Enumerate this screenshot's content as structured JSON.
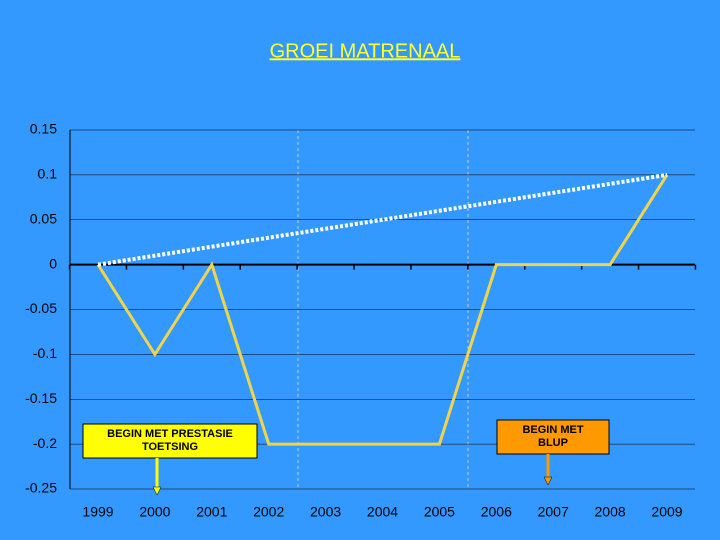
{
  "chart_data": {
    "type": "line",
    "title": "GROEI MATRENAAL",
    "categories": [
      "1999",
      "2000",
      "2001",
      "2002",
      "2003",
      "2004",
      "2005",
      "2006",
      "2007",
      "2008",
      "2009"
    ],
    "series": [
      {
        "color": "#f2d44a",
        "values": [
          0,
          -0.1,
          0,
          -0.2,
          -0.2,
          -0.2,
          -0.2,
          0,
          0,
          0,
          0.1
        ]
      },
      {
        "color": "#ffffff",
        "style": "dotted",
        "values": [
          0,
          0.01,
          0.02,
          0.03,
          0.04,
          0.05,
          0.06,
          0.07,
          0.08,
          0.09,
          0.1
        ]
      }
    ],
    "ylim": [
      -0.25,
      0.15
    ],
    "yticks": [
      -0.25,
      -0.2,
      -0.15,
      -0.1,
      -0.05,
      0,
      0.05,
      0.1,
      0.15
    ],
    "annotations": [
      {
        "lines": [
          "BEGIN MET PRESTASIE",
          "TOETSING"
        ],
        "color": "#ffff00"
      },
      {
        "lines": [
          "BEGIN MET",
          "BLUP"
        ],
        "color": "#ff9900"
      }
    ]
  }
}
